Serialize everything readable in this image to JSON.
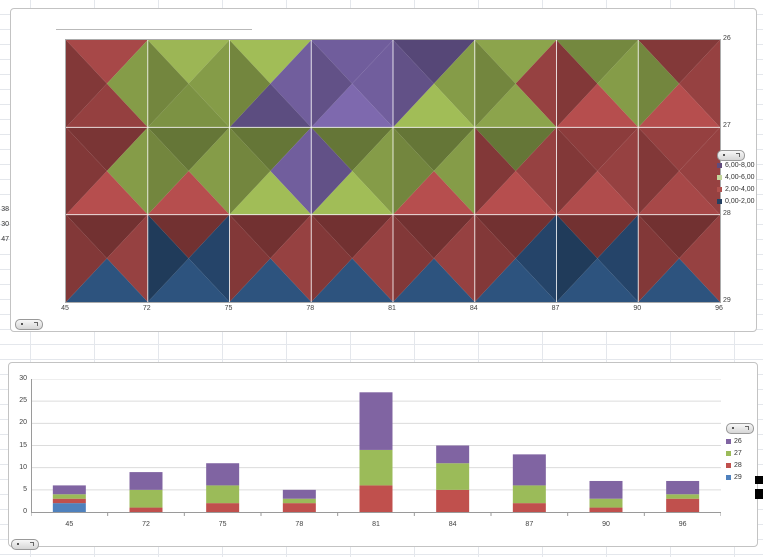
{
  "sheet": {
    "left_cell_values": [
      "38",
      "30",
      "47"
    ]
  },
  "icons": [
    "pill-control"
  ],
  "chart_data": [
    {
      "type": "heatmap",
      "subtype": "surface-contour",
      "title": "",
      "x": [
        "45",
        "72",
        "75",
        "78",
        "81",
        "84",
        "87",
        "90",
        "96"
      ],
      "rows": [
        "26",
        "27",
        "28",
        "29"
      ],
      "right_axis_ticks": [
        "26",
        "27",
        "28",
        "29"
      ],
      "values_grid": [
        [
          3.0,
          4.5,
          5.0,
          5.5,
          7.5,
          5.0,
          3.5,
          5.0,
          3.0
        ],
        [
          2.5,
          5.5,
          5.0,
          7.5,
          5.0,
          5.0,
          3.5,
          3.5,
          3.0
        ],
        [
          3.0,
          3.0,
          3.0,
          5.5,
          3.0,
          3.0,
          3.0,
          3.0,
          3.0
        ],
        [
          2.5,
          0.8,
          1.0,
          1.0,
          1.0,
          1.5,
          0.5,
          1.0,
          1.0
        ]
      ],
      "band_base_colors": [
        "#27486E",
        "#9E4444",
        "#8CA44C",
        "#7763A5"
      ],
      "legend": [
        {
          "label": "6,00-8,00",
          "color": "#604A7B"
        },
        {
          "label": "4,00-6,00",
          "color": "#C3D69B"
        },
        {
          "label": "2,00-4,00",
          "color": "#B0504D"
        },
        {
          "label": "0,00-2,00",
          "color": "#254061"
        }
      ],
      "grid_on": true,
      "legend_position": "right"
    },
    {
      "type": "bar",
      "stacked": true,
      "title": "",
      "categories": [
        "45",
        "72",
        "75",
        "78",
        "81",
        "84",
        "87",
        "90",
        "96"
      ],
      "ylim": [
        0,
        30
      ],
      "yticks": [
        0,
        5,
        10,
        15,
        20,
        25,
        30
      ],
      "series": [
        {
          "name": "26",
          "color": "#8064A2",
          "values": [
            2,
            4,
            5,
            2,
            13,
            4,
            7,
            4,
            3
          ]
        },
        {
          "name": "27",
          "color": "#9BBB59",
          "values": [
            1,
            4,
            4,
            1,
            8,
            6,
            4,
            2,
            1
          ]
        },
        {
          "name": "28",
          "color": "#C0504D",
          "values": [
            1,
            1,
            2,
            2,
            6,
            5,
            2,
            1,
            3
          ]
        },
        {
          "name": "29",
          "color": "#4F81BD",
          "values": [
            2,
            0,
            0,
            0,
            0,
            0,
            0,
            0,
            0
          ]
        }
      ],
      "stack_order_bottom_to_top": [
        "29",
        "28",
        "27",
        "26"
      ],
      "grid_on": true,
      "legend_position": "right"
    }
  ]
}
